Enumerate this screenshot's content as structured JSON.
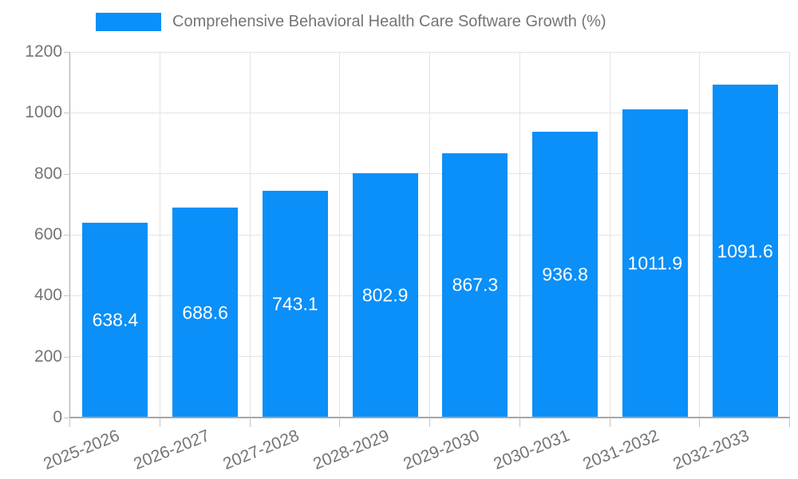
{
  "legend": {
    "label": "Comprehensive Behavioral Health Care Software Growth (%)"
  },
  "chart_data": {
    "type": "bar",
    "title": "Comprehensive Behavioral Health Care Software Growth (%)",
    "categories": [
      "2025-2026",
      "2026-2027",
      "2027-2028",
      "2028-2029",
      "2029-2030",
      "2030-2031",
      "2031-2032",
      "2032-2033"
    ],
    "values": [
      638.4,
      688.6,
      743.1,
      802.9,
      867.3,
      936.8,
      1011.9,
      1091.6
    ],
    "xlabel": "",
    "ylabel": "",
    "ylim": [
      0,
      1200
    ],
    "yticks": [
      0,
      200,
      400,
      600,
      800,
      1000,
      1200
    ],
    "grid": true,
    "legend_position": "top",
    "colors": {
      "bar": "#0b8ff8",
      "axis_text": "#757575",
      "grid": "#e3e3e3",
      "axis_line": "#a6a6a6",
      "tick": "#c4c4c4",
      "value_label": "#ffffff",
      "background": "#ffffff"
    }
  }
}
